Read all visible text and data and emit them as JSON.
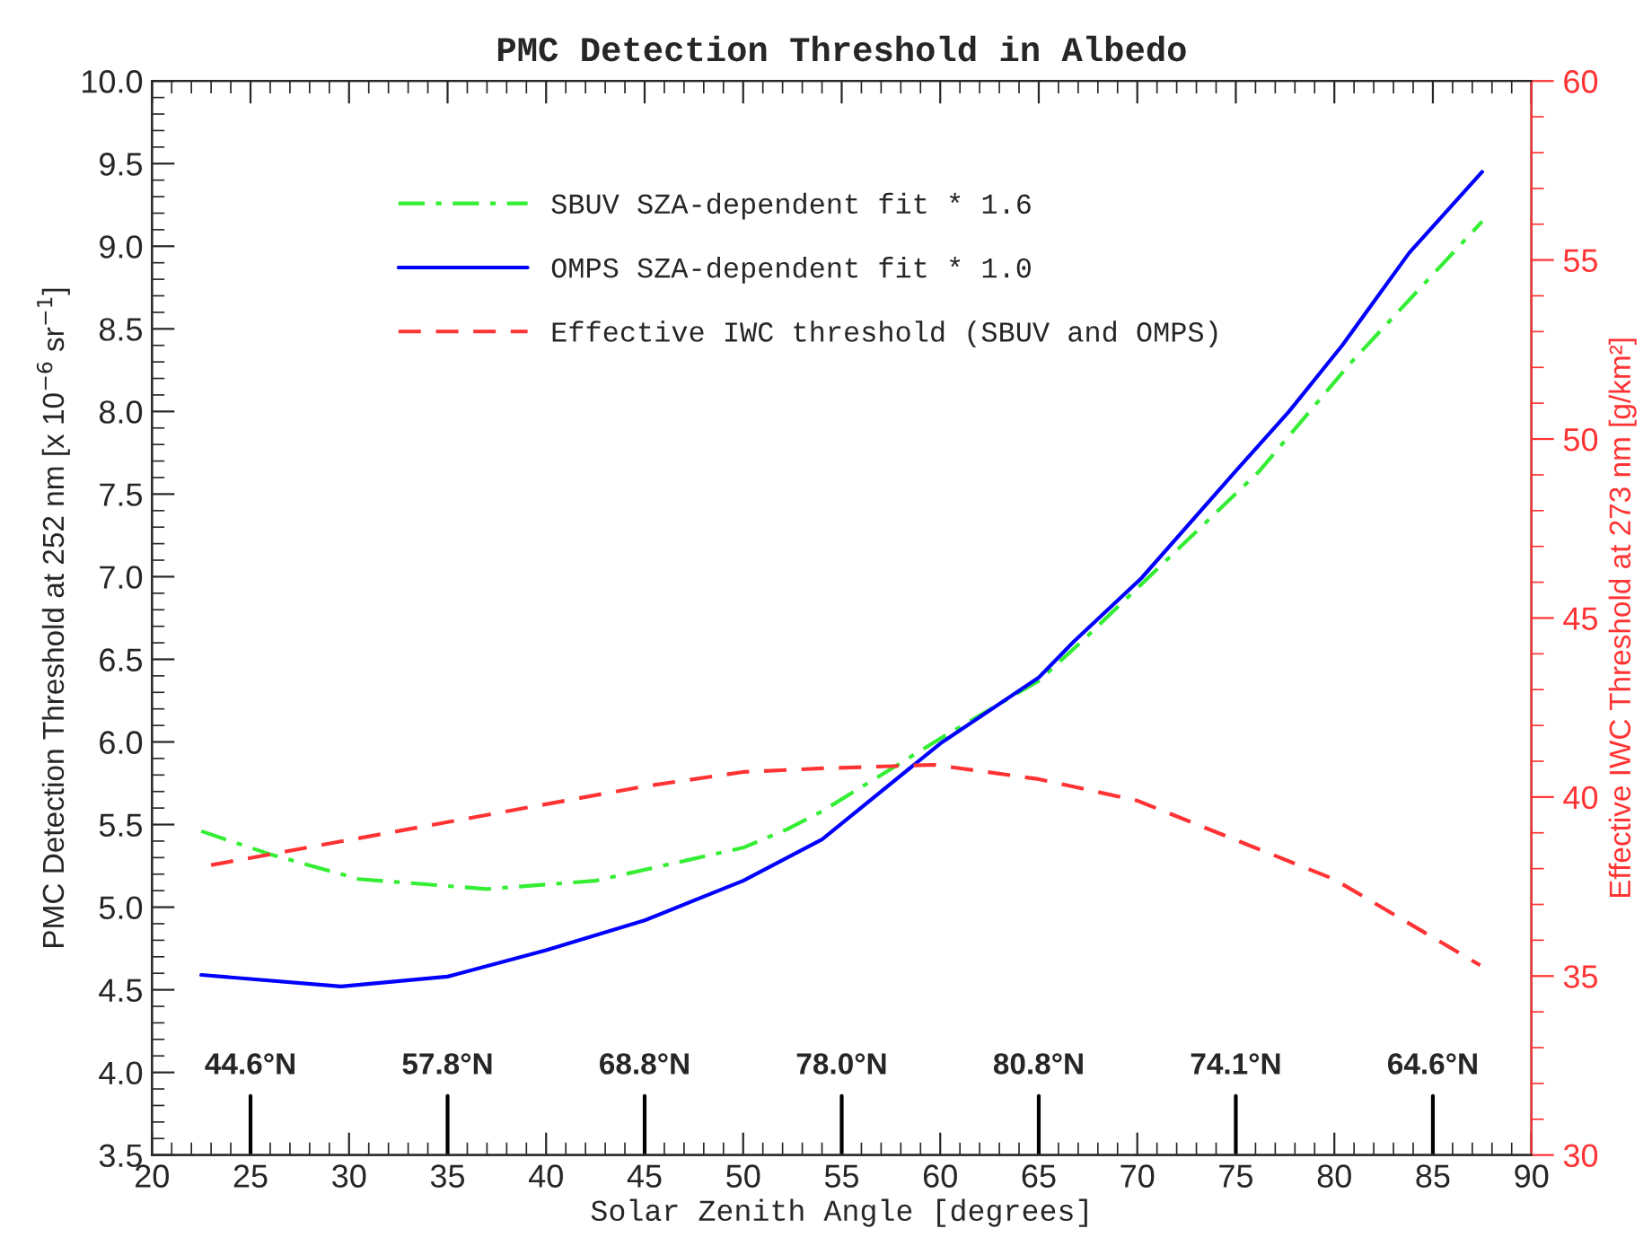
{
  "chart_data": {
    "type": "line",
    "title": "PMC Detection Threshold in Albedo",
    "xlabel": "Solar Zenith Angle [degrees]",
    "ylabel": "PMC Detection Threshold at 252 nm [x 10$^{−6}$ sr$^{−1}$]",
    "y2label": "Effective IWC Threshold at 273 nm [g/km²]",
    "xlim": [
      20,
      90
    ],
    "xticks": [
      20,
      25,
      30,
      35,
      40,
      45,
      50,
      55,
      60,
      65,
      70,
      75,
      80,
      85,
      90
    ],
    "ylim": [
      3.5,
      10.0
    ],
    "yticks": [
      {
        "value": 3.5,
        "label": "3.5"
      },
      {
        "value": 4.0,
        "label": "4.0"
      },
      {
        "value": 4.5,
        "label": "4.5"
      },
      {
        "value": 5.0,
        "label": "5.0"
      },
      {
        "value": 5.5,
        "label": "5.5"
      },
      {
        "value": 6.0,
        "label": "6.0"
      },
      {
        "value": 6.5,
        "label": "6.5"
      },
      {
        "value": 7.0,
        "label": "7.0"
      },
      {
        "value": 7.5,
        "label": "7.5"
      },
      {
        "value": 8.0,
        "label": "8.0"
      },
      {
        "value": 8.5,
        "label": "8.5"
      },
      {
        "value": 9.0,
        "label": "9.0"
      },
      {
        "value": 9.5,
        "label": "9.5"
      },
      {
        "value": 10.0,
        "label": "10.0"
      }
    ],
    "y2lim": [
      30,
      60
    ],
    "y2ticks": [
      30,
      35,
      40,
      45,
      50,
      55,
      60
    ],
    "grid": false,
    "legend": "top left",
    "series": [
      {
        "name": "SBUV SZA-dependent fit * 1.6",
        "color": "#33ee33",
        "line_style": "dashdot",
        "x": [
          22.5,
          26,
          30.5,
          37,
          42.5,
          50,
          52.2,
          54,
          60,
          65,
          67.2,
          76.2,
          80.8,
          87.5
        ],
        "values": [
          5.46,
          5.32,
          5.17,
          5.11,
          5.16,
          5.36,
          5.47,
          5.58,
          6.02,
          6.37,
          6.61,
          7.64,
          8.29,
          9.15
        ]
      },
      {
        "name": "OMPS SZA-dependent fit * 1.0",
        "color": "#0000ff",
        "line_style": "solid",
        "x": [
          22.5,
          29.6,
          35,
          40,
          45,
          50,
          54,
          60,
          65,
          66.8,
          70.2,
          75,
          77.7,
          80.4,
          83.8,
          87.5
        ],
        "values": [
          4.59,
          4.52,
          4.58,
          4.74,
          4.92,
          5.16,
          5.41,
          5.99,
          6.39,
          6.61,
          6.99,
          7.64,
          8.0,
          8.4,
          8.96,
          9.45
        ]
      },
      {
        "name": "Effective IWC threshold (SBUV and OMPS)",
        "color": "#ff3333",
        "line_style": "dashed",
        "axis": "y2",
        "x": [
          23,
          26,
          35,
          45,
          50,
          54,
          59.7,
          65,
          70,
          75,
          80,
          87.4
        ],
        "values": [
          38.1,
          38.4,
          39.3,
          40.3,
          40.7,
          40.8,
          40.9,
          40.5,
          39.9,
          38.8,
          37.7,
          35.3
        ]
      }
    ],
    "annotations": [
      "44.6°N",
      "57.8°N",
      "68.8°N",
      "78.0°N",
      "80.8°N",
      "74.1°N",
      "64.6°N"
    ]
  }
}
